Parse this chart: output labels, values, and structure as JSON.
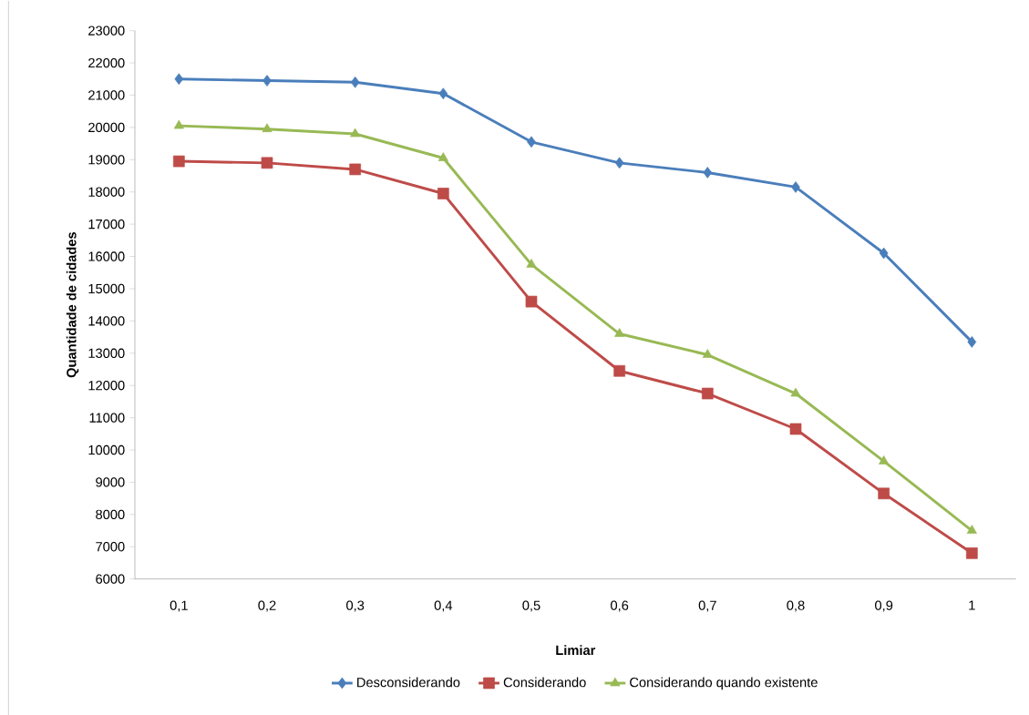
{
  "chart_data": {
    "type": "line",
    "xlabel": "Limiar",
    "ylabel": "Quantidade de cidades",
    "categories": [
      "0,1",
      "0,2",
      "0,3",
      "0,4",
      "0,5",
      "0,6",
      "0,7",
      "0,8",
      "0,9",
      "1"
    ],
    "ylim": [
      6000,
      23000
    ],
    "yticks": [
      6000,
      7000,
      8000,
      9000,
      10000,
      11000,
      12000,
      13000,
      14000,
      15000,
      16000,
      17000,
      18000,
      19000,
      20000,
      21000,
      22000,
      23000
    ],
    "grid": false,
    "legend": "bottom",
    "line_style": "solid",
    "series": [
      {
        "name": "Desconsiderando",
        "color": "#4a7ebb",
        "marker": "diamond",
        "values": [
          21500,
          21450,
          21400,
          21050,
          19550,
          18900,
          18600,
          18150,
          16100,
          13350
        ]
      },
      {
        "name": "Considerando",
        "color": "#be4b48",
        "marker": "square",
        "values": [
          18950,
          18900,
          18700,
          17950,
          14600,
          12450,
          11750,
          10650,
          8650,
          6800
        ]
      },
      {
        "name": "Considerando quando existente",
        "color": "#98b954",
        "marker": "triangle",
        "values": [
          20050,
          19950,
          19800,
          19050,
          15750,
          13600,
          12950,
          11750,
          9650,
          7500
        ]
      }
    ]
  }
}
